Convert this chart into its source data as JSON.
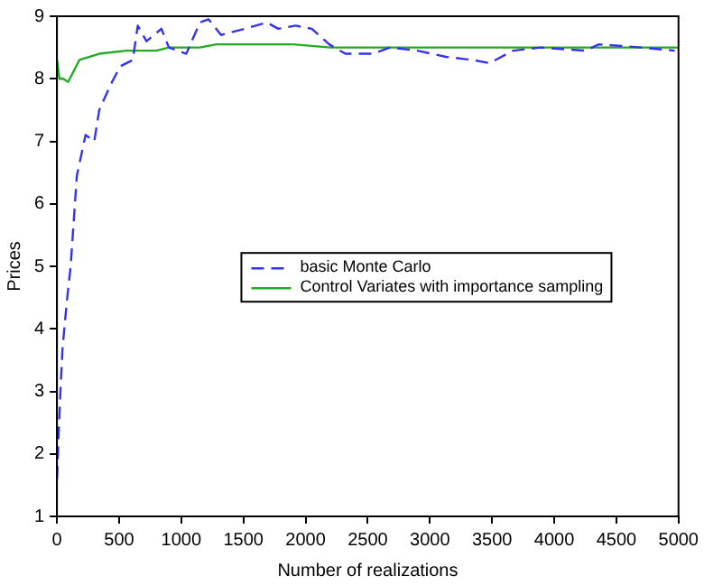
{
  "chart_data": {
    "type": "line",
    "xlabel": "Number of realizations",
    "ylabel": "Prices",
    "xlim": [
      0,
      5000
    ],
    "xticks": [
      0,
      500,
      1000,
      1500,
      2000,
      2500,
      3000,
      3500,
      4000,
      4500,
      5000
    ],
    "ylim": [
      1,
      9
    ],
    "yticks": [
      1,
      2,
      3,
      4,
      5,
      6,
      7,
      8,
      9
    ],
    "grid": false,
    "legend": "center",
    "marker": "none",
    "series": [
      {
        "name": "basic Monte Carlo",
        "color": "#3333ee",
        "line_style": "dashed",
        "x": [
          0,
          15,
          30,
          45,
          80,
          110,
          160,
          230,
          300,
          340,
          430,
          510,
          610,
          650,
          720,
          840,
          900,
          1040,
          1150,
          1220,
          1320,
          1510,
          1690,
          1780,
          1920,
          2050,
          2190,
          2320,
          2540,
          2680,
          2900,
          3130,
          3350,
          3480,
          3670,
          3890,
          4250,
          4360,
          4700,
          4970
        ],
        "values": [
          1.6,
          2.4,
          3.1,
          3.7,
          4.45,
          5.0,
          6.45,
          7.1,
          7.0,
          7.5,
          7.9,
          8.2,
          8.3,
          8.85,
          8.6,
          8.8,
          8.5,
          8.4,
          8.9,
          8.95,
          8.7,
          8.8,
          8.9,
          8.8,
          8.85,
          8.8,
          8.55,
          8.4,
          8.4,
          8.5,
          8.45,
          8.35,
          8.3,
          8.25,
          8.45,
          8.5,
          8.45,
          8.55,
          8.5,
          8.45
        ]
      },
      {
        "name": "Control Variates with importance sampling",
        "color": "#22aa22",
        "line_style": "solid",
        "x": [
          0,
          20,
          50,
          90,
          180,
          340,
          560,
          800,
          900,
          1150,
          1280,
          1600,
          1900,
          2200,
          2600,
          3000,
          3500,
          4000,
          4500,
          5000
        ],
        "values": [
          8.3,
          8.0,
          8.0,
          7.95,
          8.3,
          8.4,
          8.45,
          8.45,
          8.5,
          8.5,
          8.55,
          8.55,
          8.55,
          8.5,
          8.5,
          8.5,
          8.5,
          8.5,
          8.5,
          8.5
        ]
      }
    ]
  }
}
